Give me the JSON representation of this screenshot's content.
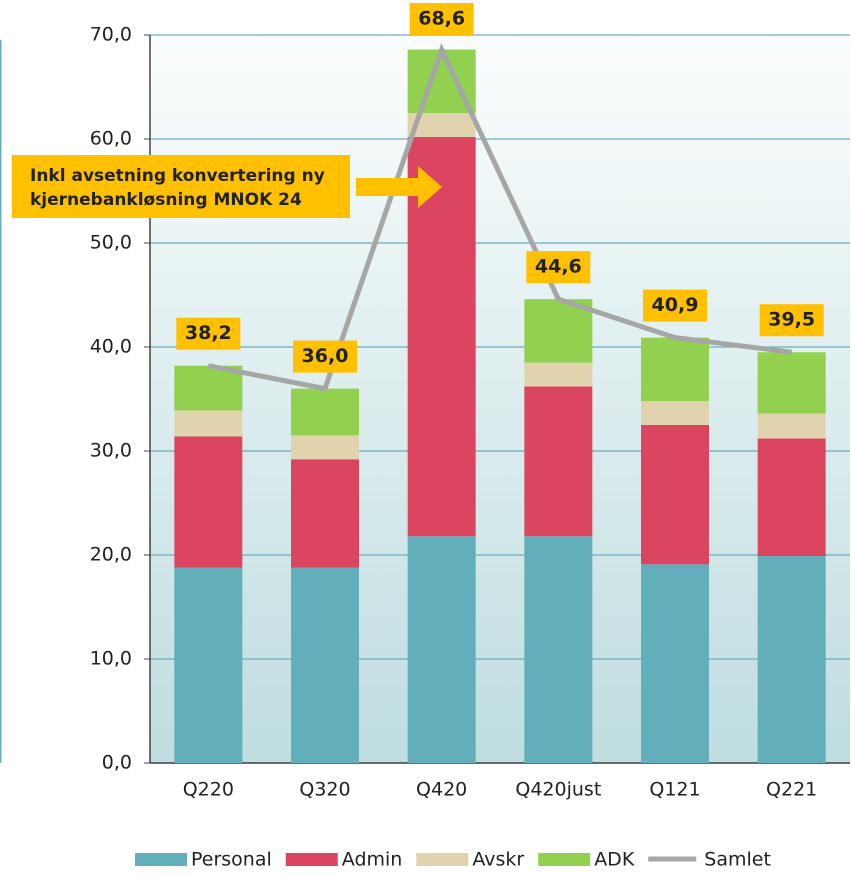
{
  "chart_data": {
    "type": "bar",
    "stacked": true,
    "categories": [
      "Q220",
      "Q320",
      "Q420",
      "Q420just",
      "Q121",
      "Q221"
    ],
    "series": [
      {
        "name": "Personal",
        "color": "#62aebb",
        "values": [
          18.8,
          18.8,
          21.8,
          21.8,
          19.1,
          19.9
        ]
      },
      {
        "name": "Admin",
        "color": "#dc4560",
        "values": [
          12.6,
          10.4,
          38.4,
          14.4,
          13.4,
          11.3
        ]
      },
      {
        "name": "Avskr",
        "color": "#e0d3ae",
        "values": [
          2.5,
          2.3,
          2.3,
          2.3,
          2.3,
          2.4
        ]
      },
      {
        "name": "ADK",
        "color": "#92d050",
        "values": [
          4.3,
          4.5,
          6.1,
          6.1,
          6.1,
          5.9
        ]
      },
      {
        "name": "Samlet",
        "type": "line",
        "color": "#a6a6a6",
        "values": [
          38.2,
          36.0,
          68.6,
          44.6,
          40.9,
          39.5
        ],
        "value_labels": [
          "38,2",
          "36,0",
          "68,6",
          "44,6",
          "40,9",
          "39,5"
        ],
        "label_color": "#ffc000"
      }
    ],
    "ylim": [
      0,
      70
    ],
    "yticks": [
      {
        "value": 0,
        "label": "0,0"
      },
      {
        "value": 10,
        "label": "10,0"
      },
      {
        "value": 20,
        "label": "20,0"
      },
      {
        "value": 30,
        "label": "30,0"
      },
      {
        "value": 40,
        "label": "40,0"
      },
      {
        "value": 50,
        "label": "50,0"
      },
      {
        "value": 60,
        "label": "60,0"
      },
      {
        "value": 70,
        "label": "70,0"
      }
    ],
    "grid": true,
    "annotation": {
      "lines": [
        "Inkl avsetning konvertering ny",
        "kjernebankløsning MNOK 24"
      ],
      "color": "#ffc000"
    },
    "legend": "bottom"
  }
}
